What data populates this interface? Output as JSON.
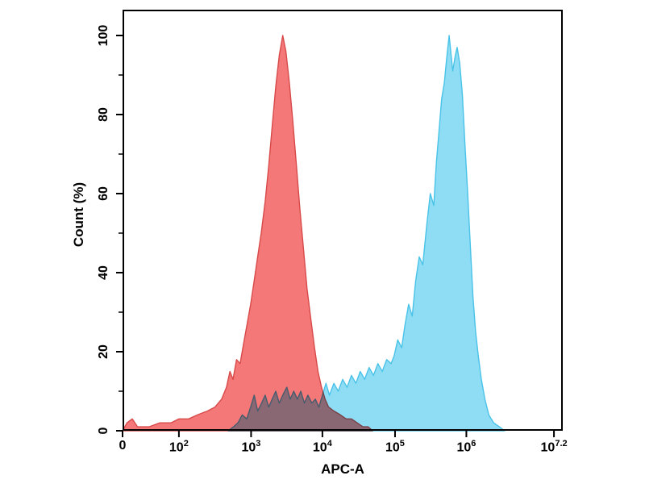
{
  "page": {
    "background": "#ffffff"
  },
  "chart_data": {
    "type": "area",
    "chart_kind": "flow-cytometry-histogram-overlay",
    "title": "",
    "xlabel": "APC-A",
    "ylabel": "Count (%)",
    "x_scale": "logarithmic (decade ticks, axis fraction f used for point coordinates)",
    "ylim": [
      0,
      100
    ],
    "grid": "off",
    "legend": "none",
    "x_ticks": [
      {
        "f": 0.0,
        "base": "0",
        "sup": ""
      },
      {
        "f": 0.128,
        "base": "10",
        "sup": "2"
      },
      {
        "f": 0.292,
        "base": "10",
        "sup": "3"
      },
      {
        "f": 0.454,
        "base": "10",
        "sup": "4"
      },
      {
        "f": 0.619,
        "base": "10",
        "sup": "5"
      },
      {
        "f": 0.781,
        "base": "10",
        "sup": "6"
      },
      {
        "f": 0.98,
        "base": "10",
        "sup": "7.2"
      }
    ],
    "y_ticks_major": [
      0,
      20,
      40,
      60,
      80,
      100
    ],
    "y_ticks_minor": [
      10,
      30,
      50,
      70,
      90
    ],
    "series": [
      {
        "name": "red-population",
        "peak_x_approx": "2e3 APC-A",
        "peak_y": 100,
        "fill": "#F47878",
        "stroke": "#D84A4A",
        "points": [
          [
            0.0,
            0
          ],
          [
            0.01,
            2
          ],
          [
            0.022,
            3
          ],
          [
            0.034,
            1
          ],
          [
            0.06,
            1
          ],
          [
            0.085,
            2
          ],
          [
            0.11,
            2
          ],
          [
            0.128,
            3
          ],
          [
            0.15,
            3
          ],
          [
            0.17,
            4
          ],
          [
            0.193,
            5
          ],
          [
            0.21,
            6
          ],
          [
            0.225,
            8
          ],
          [
            0.236,
            11
          ],
          [
            0.244,
            15
          ],
          [
            0.251,
            13
          ],
          [
            0.259,
            18
          ],
          [
            0.267,
            17
          ],
          [
            0.275,
            22
          ],
          [
            0.283,
            27
          ],
          [
            0.291,
            32
          ],
          [
            0.299,
            38
          ],
          [
            0.307,
            44
          ],
          [
            0.315,
            50
          ],
          [
            0.324,
            58
          ],
          [
            0.332,
            67
          ],
          [
            0.34,
            77
          ],
          [
            0.348,
            87
          ],
          [
            0.356,
            95
          ],
          [
            0.364,
            100
          ],
          [
            0.371,
            96
          ],
          [
            0.379,
            88
          ],
          [
            0.387,
            78
          ],
          [
            0.395,
            67
          ],
          [
            0.403,
            56
          ],
          [
            0.411,
            46
          ],
          [
            0.419,
            36
          ],
          [
            0.428,
            28
          ],
          [
            0.436,
            21
          ],
          [
            0.444,
            15
          ],
          [
            0.452,
            11
          ],
          [
            0.46,
            8
          ],
          [
            0.468,
            6
          ],
          [
            0.48,
            5
          ],
          [
            0.495,
            4
          ],
          [
            0.508,
            3
          ],
          [
            0.52,
            3
          ],
          [
            0.533,
            2
          ],
          [
            0.546,
            1
          ],
          [
            0.558,
            1
          ],
          [
            0.568,
            0
          ]
        ]
      },
      {
        "name": "cyan-population",
        "peak_x_approx": "5e5 APC-A",
        "peak_y": 100,
        "fill": "#8FDCF5",
        "stroke": "#49C3E8",
        "points": [
          [
            0.24,
            0
          ],
          [
            0.252,
            1
          ],
          [
            0.262,
            2
          ],
          [
            0.272,
            4
          ],
          [
            0.282,
            3
          ],
          [
            0.291,
            6
          ],
          [
            0.299,
            9
          ],
          [
            0.307,
            5
          ],
          [
            0.316,
            7
          ],
          [
            0.324,
            9
          ],
          [
            0.332,
            6
          ],
          [
            0.34,
            8
          ],
          [
            0.348,
            10
          ],
          [
            0.356,
            7
          ],
          [
            0.364,
            9
          ],
          [
            0.373,
            11
          ],
          [
            0.381,
            8
          ],
          [
            0.389,
            10
          ],
          [
            0.397,
            8
          ],
          [
            0.405,
            10
          ],
          [
            0.413,
            7
          ],
          [
            0.421,
            9
          ],
          [
            0.43,
            7
          ],
          [
            0.438,
            8
          ],
          [
            0.446,
            6
          ],
          [
            0.454,
            9
          ],
          [
            0.462,
            12
          ],
          [
            0.47,
            9
          ],
          [
            0.48,
            12
          ],
          [
            0.49,
            10
          ],
          [
            0.5,
            13
          ],
          [
            0.51,
            11
          ],
          [
            0.52,
            14
          ],
          [
            0.53,
            12
          ],
          [
            0.54,
            15
          ],
          [
            0.55,
            13
          ],
          [
            0.56,
            16
          ],
          [
            0.57,
            14
          ],
          [
            0.58,
            17
          ],
          [
            0.59,
            15
          ],
          [
            0.6,
            18
          ],
          [
            0.61,
            17
          ],
          [
            0.617,
            19
          ],
          [
            0.625,
            23
          ],
          [
            0.634,
            21
          ],
          [
            0.642,
            27
          ],
          [
            0.65,
            32
          ],
          [
            0.658,
            29
          ],
          [
            0.666,
            38
          ],
          [
            0.674,
            44
          ],
          [
            0.682,
            42
          ],
          [
            0.691,
            52
          ],
          [
            0.699,
            60
          ],
          [
            0.707,
            57
          ],
          [
            0.713,
            68
          ],
          [
            0.719,
            76
          ],
          [
            0.725,
            84
          ],
          [
            0.731,
            88
          ],
          [
            0.736,
            94
          ],
          [
            0.742,
            100
          ],
          [
            0.75,
            91
          ],
          [
            0.756,
            95
          ],
          [
            0.76,
            97
          ],
          [
            0.766,
            93
          ],
          [
            0.772,
            85
          ],
          [
            0.778,
            72
          ],
          [
            0.784,
            60
          ],
          [
            0.79,
            47
          ],
          [
            0.796,
            34
          ],
          [
            0.802,
            25
          ],
          [
            0.808,
            19
          ],
          [
            0.815,
            13
          ],
          [
            0.823,
            8
          ],
          [
            0.832,
            4
          ],
          [
            0.843,
            2
          ],
          [
            0.856,
            1
          ],
          [
            0.868,
            0
          ]
        ]
      }
    ]
  }
}
